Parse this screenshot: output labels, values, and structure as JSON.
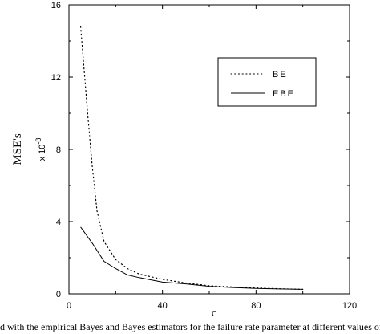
{
  "chart_data": {
    "type": "line",
    "xlabel": "c",
    "ylabel": "MSE's",
    "y_multiplier": "x 10",
    "y_multiplier_exp": "-8",
    "xlim": [
      0,
      120
    ],
    "ylim": [
      0,
      16
    ],
    "x_ticks": [
      0,
      40,
      80,
      120
    ],
    "x_tick_labels": [
      "0",
      "40",
      "80",
      "120"
    ],
    "y_ticks": [
      0,
      4,
      8,
      12,
      16
    ],
    "y_tick_labels": [
      "0",
      "4",
      "8",
      "12",
      "16"
    ],
    "grid": false,
    "legend_position": "top-right",
    "series": [
      {
        "name": "BE",
        "style": "dotted",
        "x": [
          5,
          8,
          10,
          12,
          15,
          20,
          25,
          30,
          40,
          50,
          60,
          70,
          80,
          90,
          100
        ],
        "y": [
          14.8,
          10.0,
          7.0,
          4.6,
          2.9,
          1.9,
          1.4,
          1.1,
          0.8,
          0.6,
          0.45,
          0.38,
          0.33,
          0.28,
          0.25
        ]
      },
      {
        "name": "EBE",
        "style": "solid",
        "x": [
          5,
          10,
          15,
          20,
          25,
          30,
          40,
          50,
          60,
          70,
          80,
          90,
          100
        ],
        "y": [
          3.7,
          2.8,
          1.8,
          1.4,
          1.05,
          0.9,
          0.65,
          0.55,
          0.42,
          0.35,
          0.3,
          0.27,
          0.25
        ]
      }
    ]
  },
  "caption": "d with the empirical Bayes and Bayes estimators for the failure rate parameter at different values of t"
}
